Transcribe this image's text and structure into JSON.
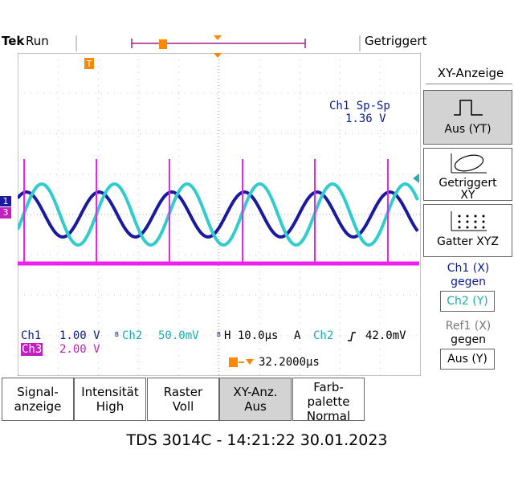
{
  "header": {
    "brand": "Tek",
    "status": "Run",
    "trigger_state": "Getriggert"
  },
  "sidebar": {
    "title": "XY-Anzeige",
    "buttons": [
      {
        "label": "Aus (YT)",
        "selected": true,
        "icon": "yt-pulse-icon"
      },
      {
        "label_line1": "Getriggert",
        "label_line2": "XY",
        "icon": "xy-ellipse-icon"
      },
      {
        "label": "Gatter XYZ",
        "icon": "xyz-dots-icon"
      }
    ],
    "ch1_label_line1": "Ch1 (X)",
    "ch1_label_line2": "gegen",
    "ch1_value": "Ch2 (Y)",
    "ref1_label_line1": "Ref1 (X)",
    "ref1_label_line2": "gegen",
    "ref1_value": "Aus (Y)"
  },
  "screen": {
    "measurement_label": "Ch1 Sp-Sp",
    "measurement_value": "1.36 V",
    "ch1_name": "Ch1",
    "ch1_scale": "1.00 V",
    "ch2_prefix": "B",
    "ch2_name": "Ch2",
    "ch2_scale": "50.0mV",
    "ch3_name": "Ch3",
    "ch3_scale": "2.00 V",
    "timebase_prefix": "B",
    "timebase": "H 10.0μs",
    "trigger_mode": "A",
    "trigger_source": "Ch2",
    "trigger_level": "42.0mV",
    "trigger_position": "32.2000μs",
    "trigger_marker": "T",
    "ch1_marker": "1",
    "ch3_marker": "3"
  },
  "bottom_menu": [
    {
      "line1": "Signal-",
      "line2": "anzeige",
      "line3": ""
    },
    {
      "line1": "Intensität",
      "line2": "High",
      "line3": ""
    },
    {
      "line1": "Raster",
      "line2": "Voll",
      "line3": ""
    },
    {
      "line1": "XY-Anz.",
      "line2": "Aus",
      "line3": "",
      "selected": true
    },
    {
      "line1": "Farb-",
      "line2": "palette",
      "line3": "Normal"
    }
  ],
  "footer": "TDS 3014C - 14:21:22   30.01.2023",
  "colors": {
    "ch1": "#1a1aa0",
    "ch2": "#33cccc",
    "ch3": "#ee22ee",
    "trigger": "#ff8800",
    "grid": "#c8c8c8"
  }
}
